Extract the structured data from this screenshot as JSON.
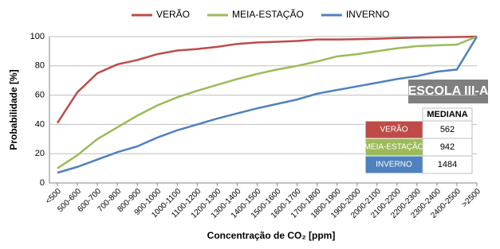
{
  "chart_data": {
    "type": "line",
    "y_label": "Probabilidade [%]",
    "x_label": "Concentração de CO₂ [ppm]",
    "categories": [
      "<500",
      "500-600",
      "600-700",
      "700-800",
      "800-900",
      "900-1000",
      "1000-1100",
      "1100-1200",
      "1200-1300",
      "1300-1400",
      "1400-1500",
      "1500-1600",
      "1600-1700",
      "1700-1800",
      "1800-1900",
      "1900-2000",
      "2000-2100",
      "2100-2200",
      "2200-2300",
      "2300-2400",
      "2400-2500",
      ">2500"
    ],
    "series": [
      {
        "name": "VERÃO",
        "color": "#be4b48",
        "values": [
          41,
          62,
          75,
          81,
          84,
          88,
          90.5,
          91.5,
          93,
          95,
          96,
          96.5,
          97,
          98,
          98,
          98.2,
          98.5,
          99,
          99.3,
          99.5,
          99.7,
          100
        ]
      },
      {
        "name": "MEIA-ESTAÇÃO",
        "color": "#9bbb59",
        "values": [
          10,
          19,
          30,
          38,
          46,
          53,
          58.5,
          63,
          67,
          71,
          74.5,
          77.5,
          80,
          83,
          86.5,
          88,
          90,
          92,
          93.5,
          94,
          94.5,
          100
        ]
      },
      {
        "name": "INVERNO",
        "color": "#4f81bd",
        "values": [
          7,
          11,
          16,
          21,
          25,
          31,
          36,
          40,
          44,
          47.5,
          51,
          54,
          57,
          61,
          63.5,
          66,
          68.5,
          71,
          73,
          76,
          77.5,
          100
        ]
      }
    ],
    "ylim": [
      0,
      100
    ],
    "yticks": [
      0,
      20,
      40,
      60,
      80,
      100
    ],
    "grid": true,
    "legend": "top",
    "annotation": "ESCOLA III-A",
    "median_table": {
      "header": "MEDIANA",
      "values": [
        562,
        942,
        1484
      ]
    }
  }
}
